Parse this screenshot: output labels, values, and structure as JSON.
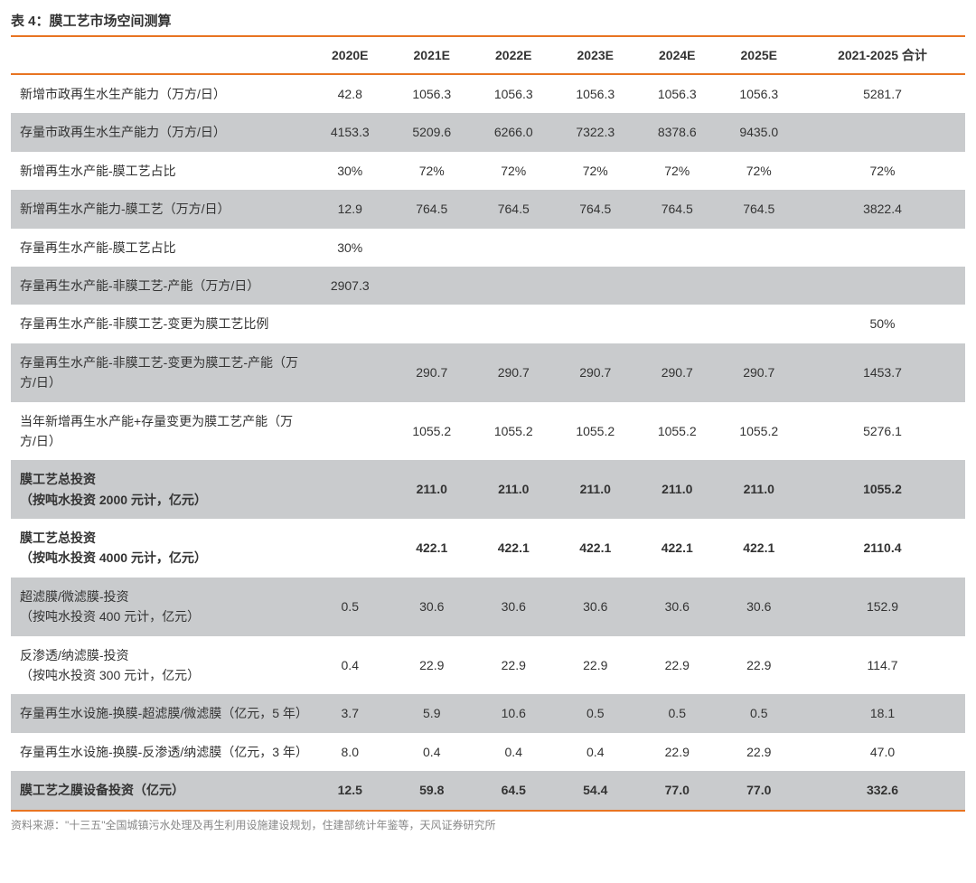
{
  "title": "表 4：膜工艺市场空间测算",
  "footer": "资料来源：\"十三五\"全国城镇污水处理及再生利用设施建设规划，住建部统计年鉴等，天风证券研究所",
  "colors": {
    "accent": "#e87422",
    "shaded_row": "#c9cbcd",
    "white_row": "#ffffff",
    "text": "#333333",
    "footer_text": "#888888"
  },
  "columns": [
    "",
    "2020E",
    "2021E",
    "2022E",
    "2023E",
    "2024E",
    "2025E",
    "2021-2025 合计"
  ],
  "rows": [
    {
      "shaded": false,
      "bold": false,
      "cells": [
        "新增市政再生水生产能力（万方/日）",
        "42.8",
        "1056.3",
        "1056.3",
        "1056.3",
        "1056.3",
        "1056.3",
        "5281.7"
      ]
    },
    {
      "shaded": true,
      "bold": false,
      "cells": [
        "存量市政再生水生产能力（万方/日）",
        "4153.3",
        "5209.6",
        "6266.0",
        "7322.3",
        "8378.6",
        "9435.0",
        ""
      ]
    },
    {
      "shaded": false,
      "bold": false,
      "cells": [
        "新增再生水产能-膜工艺占比",
        "30%",
        "72%",
        "72%",
        "72%",
        "72%",
        "72%",
        "72%"
      ]
    },
    {
      "shaded": true,
      "bold": false,
      "cells": [
        "新增再生水产能力-膜工艺（万方/日）",
        "12.9",
        "764.5",
        "764.5",
        "764.5",
        "764.5",
        "764.5",
        "3822.4"
      ]
    },
    {
      "shaded": false,
      "bold": false,
      "cells": [
        "存量再生水产能-膜工艺占比",
        "30%",
        "",
        "",
        "",
        "",
        "",
        ""
      ]
    },
    {
      "shaded": true,
      "bold": false,
      "cells": [
        "存量再生水产能-非膜工艺-产能（万方/日）",
        "2907.3",
        "",
        "",
        "",
        "",
        "",
        ""
      ]
    },
    {
      "shaded": false,
      "bold": false,
      "cells": [
        "存量再生水产能-非膜工艺-变更为膜工艺比例",
        "",
        "",
        "",
        "",
        "",
        "",
        "50%"
      ]
    },
    {
      "shaded": true,
      "bold": false,
      "cells": [
        "存量再生水产能-非膜工艺-变更为膜工艺-产能（万方/日）",
        "",
        "290.7",
        "290.7",
        "290.7",
        "290.7",
        "290.7",
        "1453.7"
      ]
    },
    {
      "shaded": false,
      "bold": false,
      "cells": [
        "当年新增再生水产能+存量变更为膜工艺产能（万方/日）",
        "",
        "1055.2",
        "1055.2",
        "1055.2",
        "1055.2",
        "1055.2",
        "5276.1"
      ]
    },
    {
      "shaded": true,
      "bold": true,
      "cells": [
        "膜工艺总投资\n（按吨水投资 2000 元计，亿元）",
        "",
        "211.0",
        "211.0",
        "211.0",
        "211.0",
        "211.0",
        "1055.2"
      ]
    },
    {
      "shaded": false,
      "bold": true,
      "cells": [
        "膜工艺总投资\n（按吨水投资 4000 元计，亿元）",
        "",
        "422.1",
        "422.1",
        "422.1",
        "422.1",
        "422.1",
        "2110.4"
      ]
    },
    {
      "shaded": true,
      "bold": false,
      "cells": [
        "超滤膜/微滤膜-投资\n（按吨水投资 400 元计，亿元）",
        "0.5",
        "30.6",
        "30.6",
        "30.6",
        "30.6",
        "30.6",
        "152.9"
      ]
    },
    {
      "shaded": false,
      "bold": false,
      "cells": [
        "反渗透/纳滤膜-投资\n（按吨水投资 300 元计，亿元）",
        "0.4",
        "22.9",
        "22.9",
        "22.9",
        "22.9",
        "22.9",
        "114.7"
      ]
    },
    {
      "shaded": true,
      "bold": false,
      "cells": [
        "存量再生水设施-换膜-超滤膜/微滤膜（亿元，5 年）",
        "3.7",
        "5.9",
        "10.6",
        "0.5",
        "0.5",
        "0.5",
        "18.1"
      ]
    },
    {
      "shaded": false,
      "bold": false,
      "cells": [
        "存量再生水设施-换膜-反渗透/纳滤膜（亿元，3 年）",
        "8.0",
        "0.4",
        "0.4",
        "0.4",
        "22.9",
        "22.9",
        "47.0"
      ]
    },
    {
      "shaded": true,
      "bold": true,
      "cells": [
        "膜工艺之膜设备投资（亿元）",
        "12.5",
        "59.8",
        "64.5",
        "54.4",
        "77.0",
        "77.0",
        "332.6"
      ]
    }
  ]
}
